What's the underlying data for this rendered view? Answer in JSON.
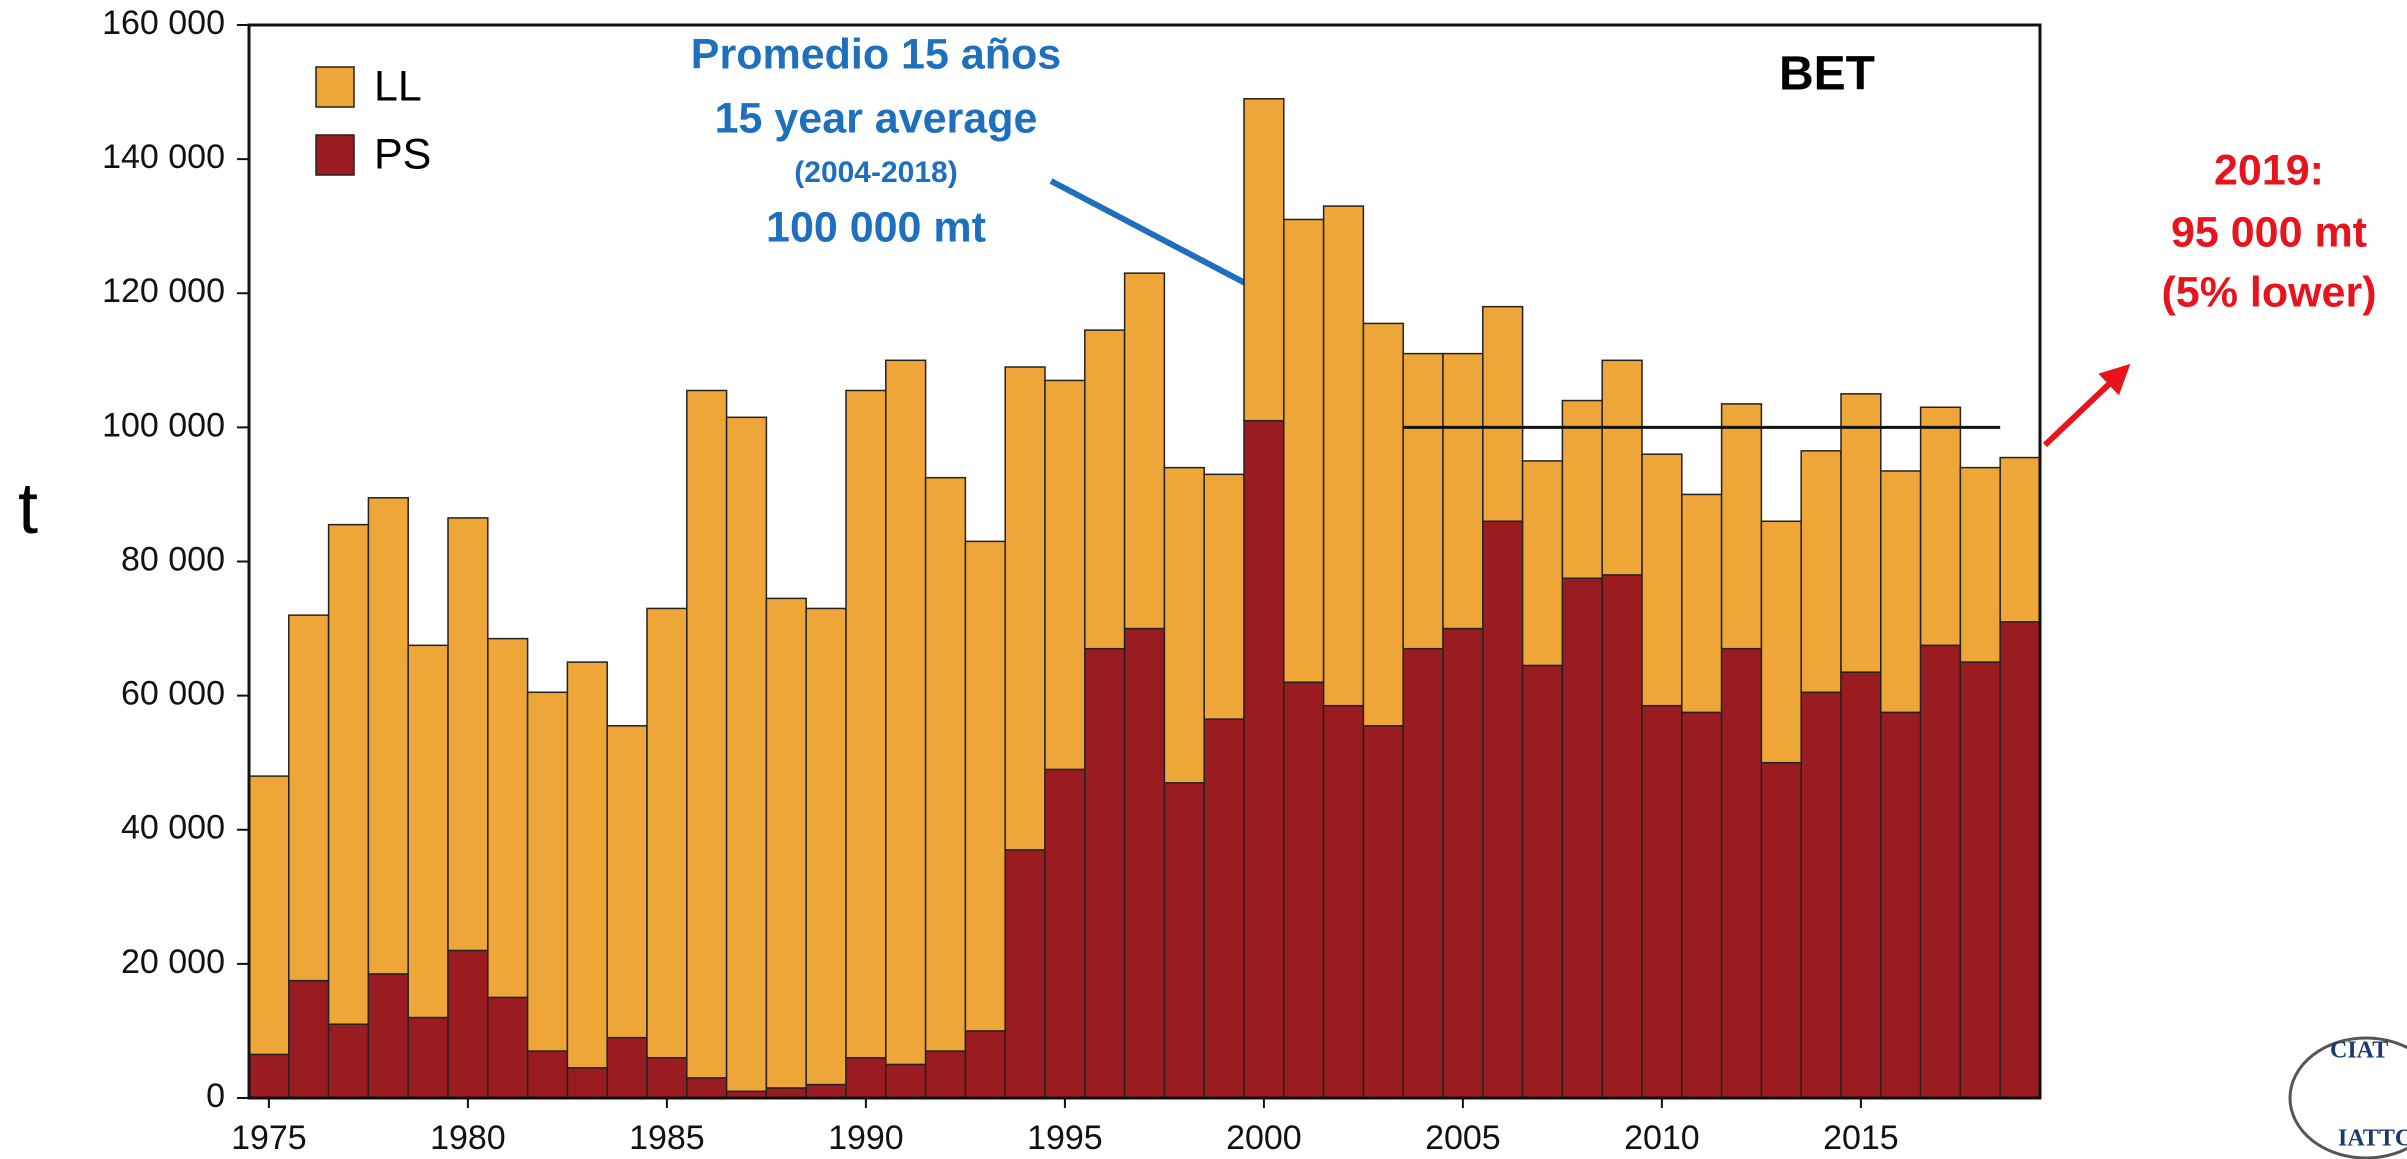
{
  "chart_data": {
    "type": "stacked_bar",
    "y_label": "t",
    "panel_label": "BET",
    "x": [
      1975,
      1976,
      1977,
      1978,
      1979,
      1980,
      1981,
      1982,
      1983,
      1984,
      1985,
      1986,
      1987,
      1988,
      1989,
      1990,
      1991,
      1992,
      1993,
      1994,
      1995,
      1996,
      1997,
      1998,
      1999,
      2000,
      2001,
      2002,
      2003,
      2004,
      2005,
      2006,
      2007,
      2008,
      2009,
      2010,
      2011,
      2012,
      2013,
      2014,
      2015,
      2016,
      2017,
      2018,
      2019
    ],
    "series": [
      {
        "name": "LL",
        "color": "#eda637",
        "values": [
          41500,
          54500,
          74500,
          71000,
          55500,
          64500,
          53500,
          53500,
          60500,
          46500,
          67000,
          102500,
          100500,
          73000,
          71000,
          99500,
          105000,
          85500,
          73000,
          72000,
          58000,
          47500,
          53000,
          47000,
          36500,
          48000,
          69000,
          74500,
          60000,
          44000,
          41000,
          32000,
          30500,
          26500,
          32000,
          37500,
          32500,
          36500,
          36000,
          36000,
          41500,
          36000,
          35500,
          29000,
          24500
        ]
      },
      {
        "name": "PS",
        "color": "#9b1c20",
        "values": [
          6500,
          17500,
          11000,
          18500,
          12000,
          22000,
          15000,
          7000,
          4500,
          9000,
          6000,
          3000,
          1000,
          1500,
          2000,
          6000,
          5000,
          7000,
          10000,
          37000,
          49000,
          67000,
          70000,
          47000,
          56500,
          101000,
          62000,
          58500,
          55500,
          67000,
          70000,
          86000,
          64500,
          77500,
          78000,
          58500,
          57500,
          67000,
          50000,
          60500,
          63500,
          57500,
          67500,
          65000,
          71000
        ]
      }
    ],
    "xlim": [
      1974.5,
      2019.5
    ],
    "xticks": [
      1975,
      1980,
      1985,
      1990,
      1995,
      2000,
      2005,
      2010,
      2015
    ],
    "ylim": [
      0,
      160000
    ],
    "yticks": [
      0,
      {
        "value": 20000,
        "label": "20 000"
      },
      {
        "value": 40000,
        "label": "40 000"
      },
      {
        "value": 60000,
        "label": "60 000"
      },
      {
        "value": 80000,
        "label": "80 000"
      },
      {
        "value": 100000,
        "label": "100 000"
      },
      {
        "value": 120000,
        "label": "120 000"
      },
      {
        "value": 140000,
        "label": "140 000"
      },
      {
        "value": 160000,
        "label": "160 000"
      }
    ],
    "reference_line": {
      "y": 100000,
      "x": [
        2004,
        2018
      ]
    },
    "annotation_average": [
      "Promedio 15 años",
      "15 year average",
      "(2004-2018)",
      "100 000 mt"
    ],
    "annotation_2019": [
      "2019:",
      "95 000 mt",
      "(5% lower)"
    ],
    "logo": [
      "CIAT",
      "IATTC"
    ]
  }
}
